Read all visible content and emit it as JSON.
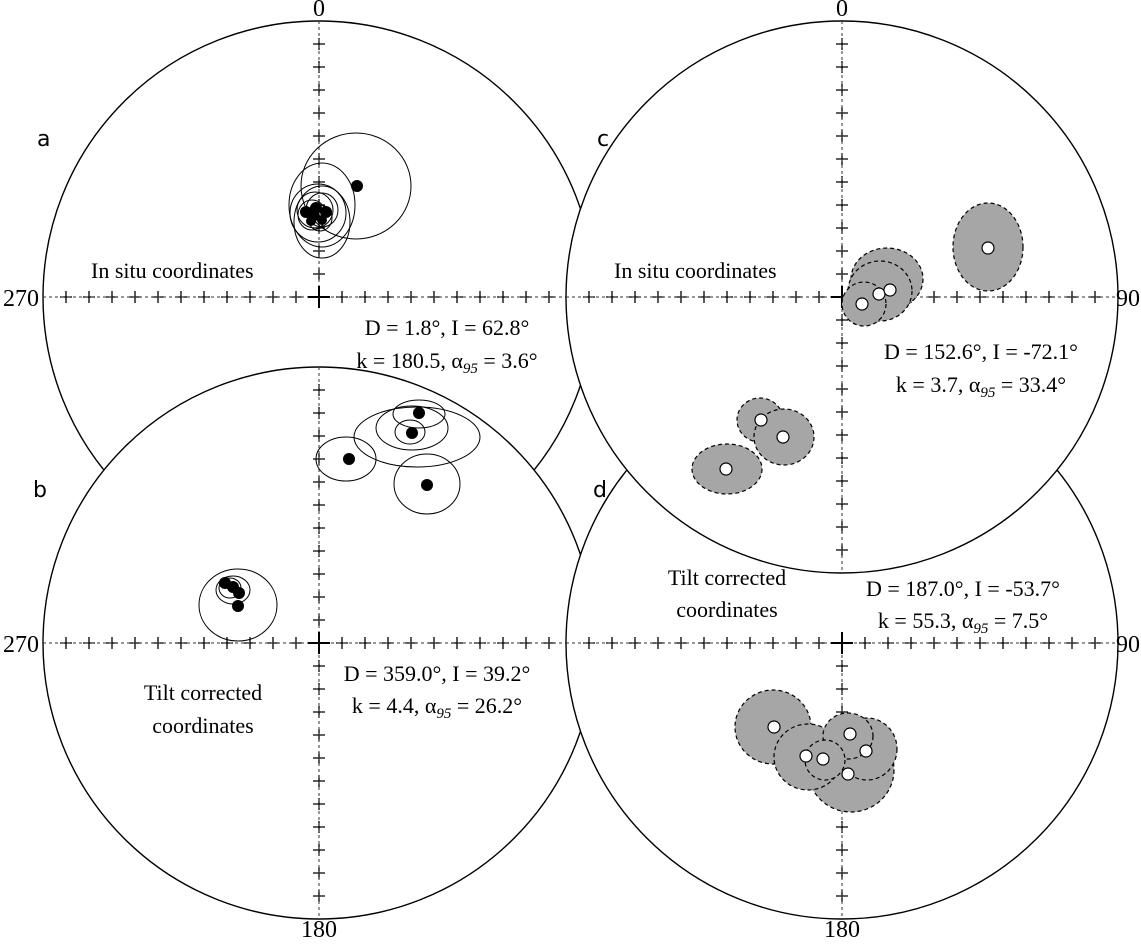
{
  "panels": [
    {
      "id": "a",
      "letter": "a",
      "labels": {
        "north": "0",
        "west": "270"
      },
      "coordinates": "In situ coordinates",
      "stats": [
        "D = 1.8°, I = 62.8°",
        "k = 180.5, α95 = 3.6°"
      ]
    },
    {
      "id": "b",
      "letter": "b",
      "labels": {
        "west": "270",
        "south": "180"
      },
      "coordinates": [
        "Tilt corrected",
        "coordinates"
      ],
      "stats": [
        "D = 359.0°, I = 39.2°",
        "k = 4.4, α95 = 26.2°"
      ]
    },
    {
      "id": "c",
      "letter": "c",
      "labels": {
        "north": "0",
        "east": "90"
      },
      "coordinates": "In situ coordinates",
      "stats": [
        "D = 152.6°, I = -72.1°",
        "k = 3.7, α95 = 33.4°"
      ]
    },
    {
      "id": "d",
      "letter": "d",
      "labels": {
        "east": "90",
        "south": "180"
      },
      "coordinates": [
        "Tilt corrected",
        "coordinates"
      ],
      "stats": [
        "D = 187.0°, I = -53.7°",
        "k = 55.3, α95 = 7.5°"
      ]
    }
  ],
  "legend": {
    "filled_symbol": "lower-hemisphere (solid dot)",
    "open_symbol": "upper-hemisphere (open dot, shaded confidence cone)"
  }
}
